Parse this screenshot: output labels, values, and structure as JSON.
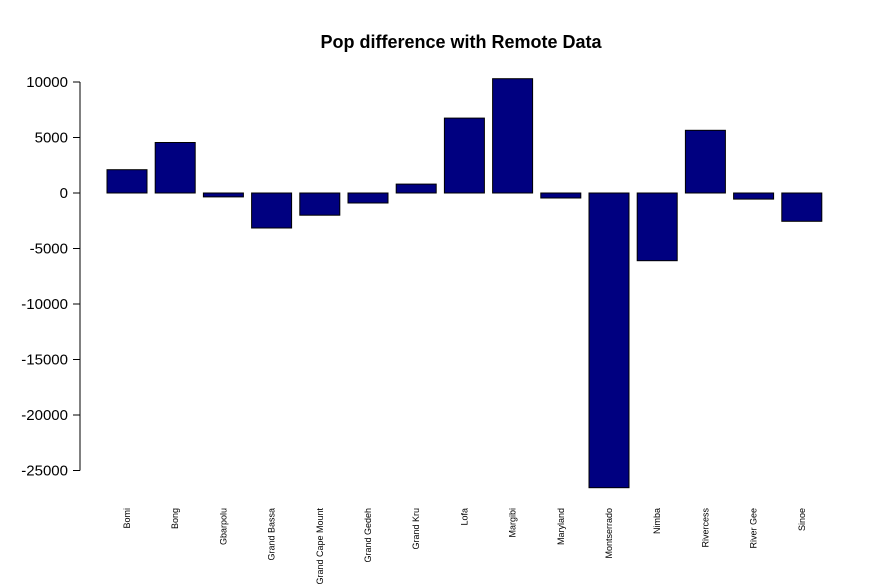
{
  "chart_data": {
    "type": "bar",
    "title": "Pop difference with Remote Data",
    "xlabel": "",
    "ylabel": "",
    "categories": [
      "Bomi",
      "Bong",
      "Gbarpolu",
      "Grand Bassa",
      "Grand Cape Mount",
      "Grand Gedeh",
      "Grand Kru",
      "Lofa",
      "Margibi",
      "Maryland",
      "Montserrado",
      "Nimba",
      "Rivercess",
      "River Gee",
      "Sinoe"
    ],
    "values": [
      2100,
      4550,
      -350,
      -3150,
      -2000,
      -900,
      800,
      6750,
      10300,
      -450,
      -26550,
      -6100,
      5650,
      -550,
      -2550
    ],
    "yticks": [
      10000,
      5000,
      0,
      -5000,
      -10000,
      -15000,
      -20000,
      -25000
    ],
    "ylim": [
      -26550,
      10300
    ],
    "bar_color": "#000080",
    "grid": false,
    "legend": "none"
  }
}
